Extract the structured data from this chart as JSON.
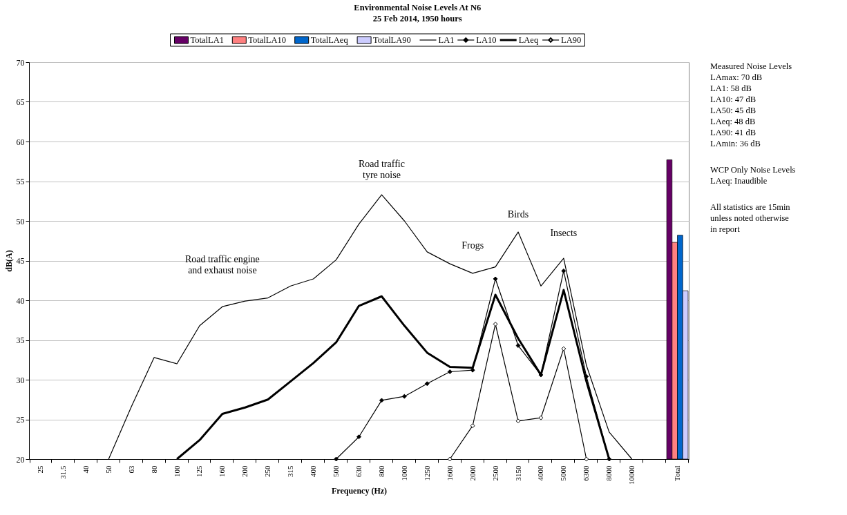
{
  "chart_data": {
    "type": "line",
    "title": "Environmental Noise Levels At N6",
    "subtitle": "25 Feb 2014, 1950 hours",
    "xlabel": "Frequency (Hz)",
    "ylabel": "dB(A)",
    "categories": [
      "25",
      "31.5",
      "40",
      "50",
      "63",
      "80",
      "100",
      "125",
      "160",
      "200",
      "250",
      "315",
      "400",
      "500",
      "630",
      "800",
      "1000",
      "1250",
      "1600",
      "2000",
      "2500",
      "3150",
      "4000",
      "5000",
      "6300",
      "8000",
      "10000",
      null,
      "Total"
    ],
    "series": [
      {
        "name": "TotalLA1",
        "type": "bar",
        "color": "#660066",
        "values": [
          null,
          null,
          null,
          null,
          null,
          null,
          null,
          null,
          null,
          null,
          null,
          null,
          null,
          null,
          null,
          null,
          null,
          null,
          null,
          null,
          null,
          null,
          null,
          null,
          null,
          null,
          null,
          null,
          57.7
        ]
      },
      {
        "name": "TotalLA10",
        "type": "bar",
        "color": "#ff8080",
        "values": [
          null,
          null,
          null,
          null,
          null,
          null,
          null,
          null,
          null,
          null,
          null,
          null,
          null,
          null,
          null,
          null,
          null,
          null,
          null,
          null,
          null,
          null,
          null,
          null,
          null,
          null,
          null,
          null,
          47.3
        ]
      },
      {
        "name": "TotalLAeq",
        "type": "bar",
        "color": "#0066cc",
        "values": [
          null,
          null,
          null,
          null,
          null,
          null,
          null,
          null,
          null,
          null,
          null,
          null,
          null,
          null,
          null,
          null,
          null,
          null,
          null,
          null,
          null,
          null,
          null,
          null,
          null,
          null,
          null,
          null,
          48.2
        ]
      },
      {
        "name": "TotalLA90",
        "type": "bar",
        "color": "#ccccff",
        "values": [
          null,
          null,
          null,
          null,
          null,
          null,
          null,
          null,
          null,
          null,
          null,
          null,
          null,
          null,
          null,
          null,
          null,
          null,
          null,
          null,
          null,
          null,
          null,
          null,
          null,
          null,
          null,
          null,
          41.2
        ]
      },
      {
        "name": "LA1",
        "color": "#000000",
        "marker": "none",
        "values": [
          null,
          null,
          null,
          20,
          26.6,
          32.8,
          32.0,
          36.8,
          39.2,
          39.9,
          40.3,
          41.8,
          42.7,
          45.1,
          49.6,
          53.3,
          50.0,
          46.1,
          44.6,
          43.4,
          44.2,
          48.6,
          41.8,
          45.3,
          31.8,
          23.4,
          20,
          null,
          null
        ]
      },
      {
        "name": "LA10",
        "color": "#000000",
        "marker": "diamond",
        "values": [
          null,
          null,
          null,
          null,
          null,
          null,
          null,
          null,
          null,
          null,
          null,
          null,
          null,
          20,
          22.8,
          27.4,
          27.9,
          29.5,
          31.0,
          31.2,
          42.7,
          34.3,
          30.6,
          43.7,
          30.4,
          20,
          null,
          null,
          null
        ]
      },
      {
        "name": "LAeq",
        "color": "#000000",
        "marker": "none",
        "values": [
          null,
          null,
          null,
          null,
          null,
          null,
          20,
          22.4,
          25.7,
          26.5,
          27.5,
          29.8,
          32.1,
          34.7,
          39.3,
          40.5,
          36.8,
          33.4,
          31.6,
          31.5,
          40.7,
          35.2,
          30.6,
          41.3,
          29.8,
          20,
          null,
          null,
          null
        ]
      },
      {
        "name": "LA90",
        "color": "#000000",
        "marker": "diamond",
        "values": [
          null,
          null,
          null,
          null,
          null,
          null,
          null,
          null,
          null,
          null,
          null,
          null,
          null,
          null,
          null,
          null,
          null,
          null,
          20,
          24.2,
          37.0,
          24.8,
          25.2,
          33.9,
          20,
          null,
          null,
          null,
          null
        ]
      }
    ],
    "ylim": [
      20,
      70
    ],
    "yticks": [
      20,
      25,
      30,
      35,
      40,
      45,
      50,
      55,
      60,
      65,
      70
    ],
    "grid": "y",
    "legend": "top",
    "annotations": [
      "Road traffic engine\nand exhaust noise",
      "Road traffic\ntyre noise",
      "Frogs",
      "Birds",
      "Insects",
      "Measured Noise Levels\nLAmax: 70 dB\nLA1: 58 dB\nLA10: 47 dB\nLA50: 45 dB\nLAeq: 48 dB\nLA90: 41 dB\nLAmin: 36 dB",
      "WCP Only Noise Levels\nLAeq: Inaudible",
      "All statistics are 15min\nunless noted otherwise\nin report"
    ]
  }
}
